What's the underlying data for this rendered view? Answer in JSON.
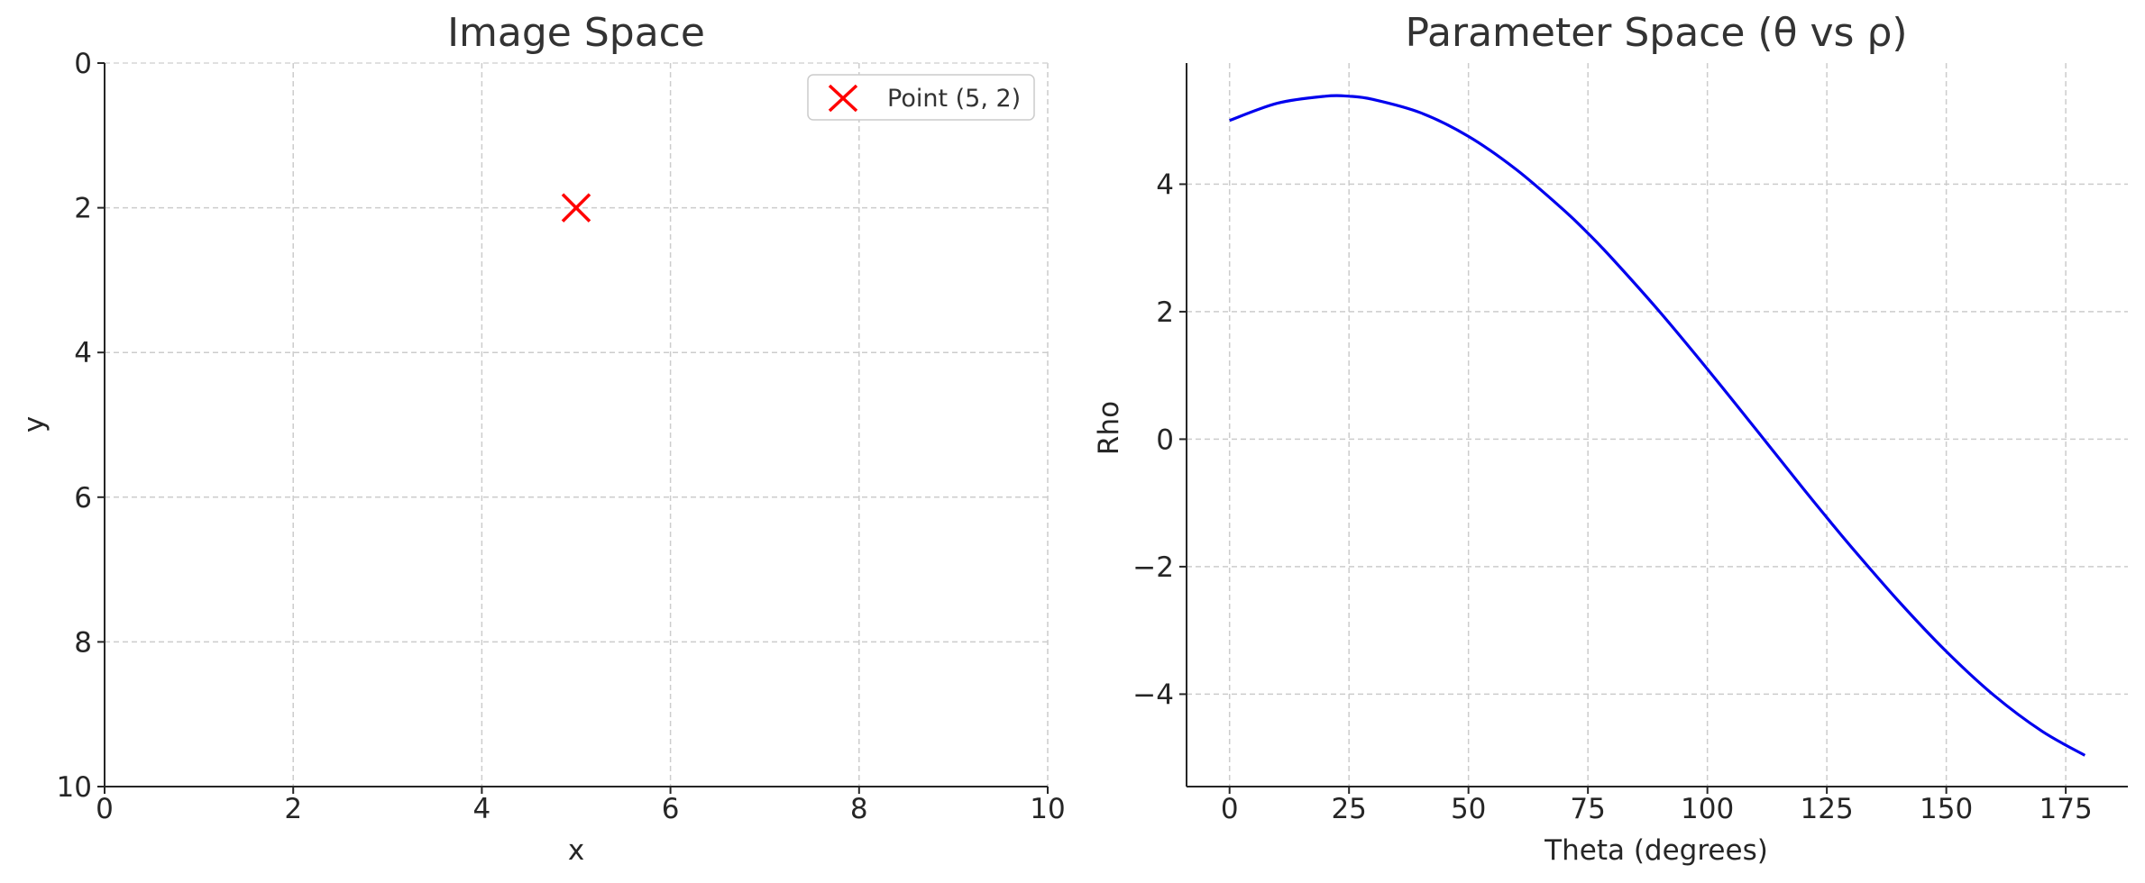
{
  "chart_data": [
    {
      "type": "scatter",
      "title": "Image Space",
      "xlabel": "x",
      "ylabel": "y",
      "xlim": [
        0,
        10
      ],
      "ylim": [
        10,
        0
      ],
      "y_inverted": true,
      "xticks": [
        0,
        2,
        4,
        6,
        8,
        10
      ],
      "yticks": [
        0,
        2,
        4,
        6,
        8,
        10
      ],
      "grid": true,
      "legend_position": "upper right",
      "series": [
        {
          "name": "Point (5, 2)",
          "marker": "x",
          "color": "#ff0000",
          "points": [
            {
              "x": 5,
              "y": 2
            }
          ]
        }
      ]
    },
    {
      "type": "line",
      "title": "Parameter Space (θ vs ρ)",
      "xlabel": "Theta (degrees)",
      "ylabel": "Rho",
      "xlim": [
        -9,
        188
      ],
      "ylim": [
        -5.45,
        5.9
      ],
      "xticks": [
        0,
        25,
        50,
        75,
        100,
        125,
        150,
        175
      ],
      "yticks": [
        -4,
        -2,
        0,
        2,
        4
      ],
      "ytick_labels": [
        "−4",
        "−2",
        "0",
        "2",
        "4"
      ],
      "grid": true,
      "series": [
        {
          "color": "#0000ee",
          "x": [
            0,
            10,
            20,
            25,
            30,
            40,
            50,
            60,
            70,
            75,
            80,
            90,
            100,
            110,
            120,
            125,
            130,
            140,
            150,
            160,
            170,
            179
          ],
          "y": [
            5.0,
            5.27,
            5.38,
            5.38,
            5.33,
            5.12,
            4.75,
            4.23,
            3.59,
            3.23,
            2.84,
            2.0,
            1.1,
            0.17,
            -0.77,
            -1.23,
            -1.68,
            -2.54,
            -3.33,
            -4.02,
            -4.58,
            -4.96
          ]
        }
      ]
    }
  ]
}
